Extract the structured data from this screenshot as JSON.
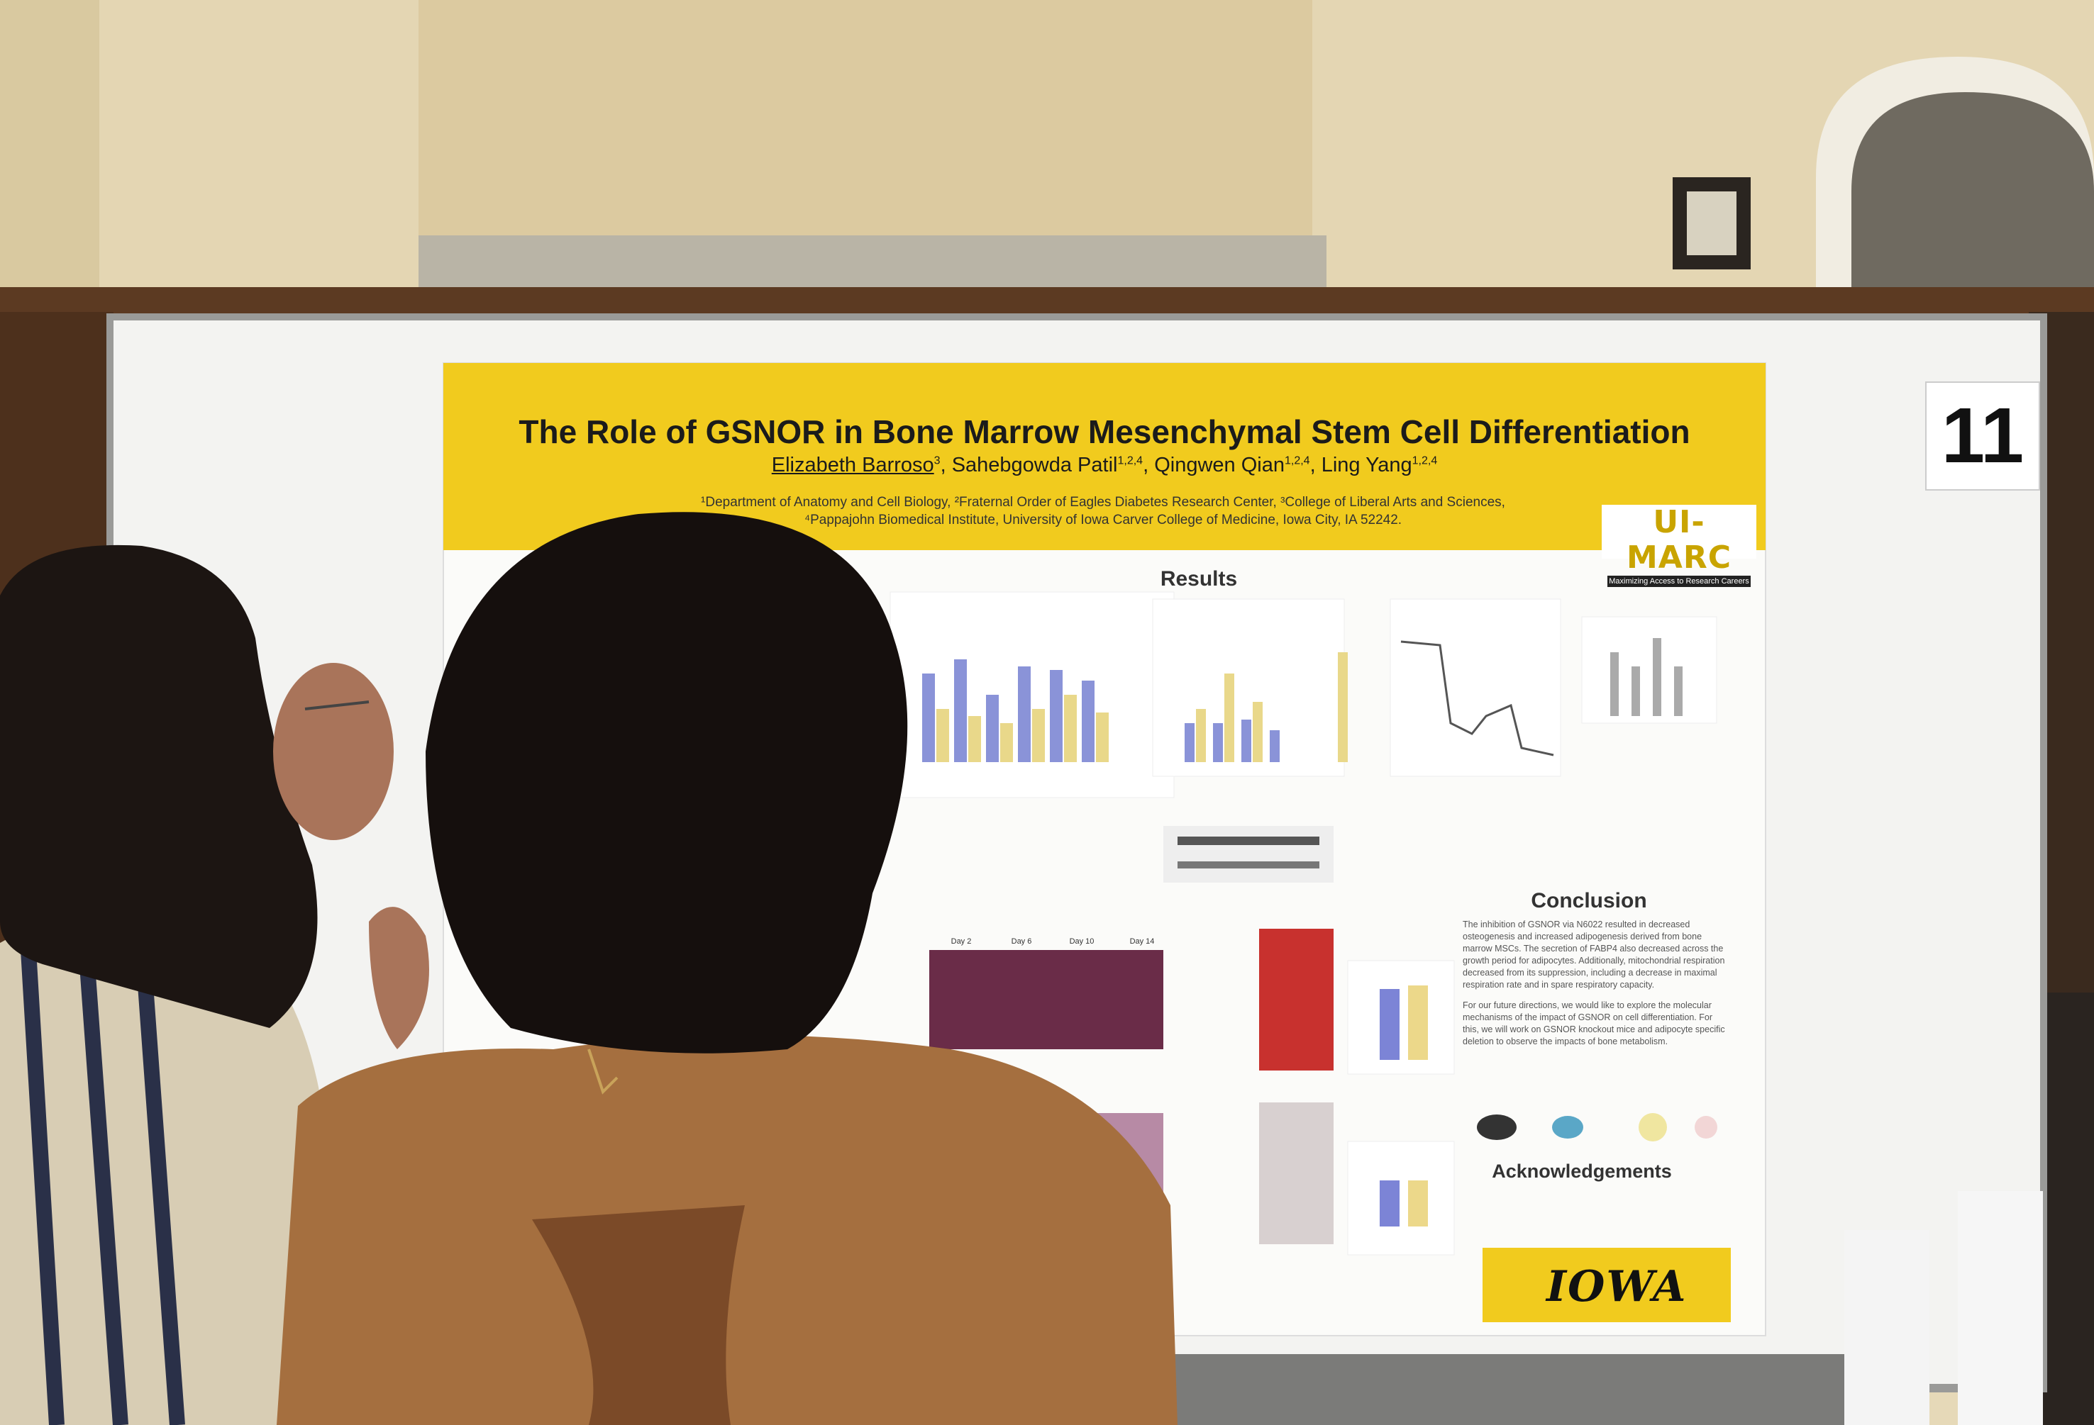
{
  "poster": {
    "title": "The Role of GSNOR in Bone Marrow Mesenchymal Stem Cell Differentiation",
    "authors": [
      {
        "name": "Elizabeth Barroso",
        "sup": "3"
      },
      {
        "name": "Sahebgowda Patil",
        "sup": "1,2,4"
      },
      {
        "name": "Qingwen Qian",
        "sup": "1,2,4"
      },
      {
        "name": "Ling Yang",
        "sup": "1,2,4"
      }
    ],
    "affiliations": [
      "¹Department of Anatomy and Cell Biology, ²Fraternal Order of Eagles Diabetes Research Center, ³College of Liberal Arts and Sciences,",
      "⁴Pappajohn Biomedical Institute, University of Iowa Carver College of Medicine, Iowa City, IA 52242."
    ],
    "logo": {
      "name": "UI-MARC",
      "tagline": "Maximizing Access to Research Careers"
    },
    "results_heading": "Results",
    "day_labels": [
      "Day 2",
      "Day 6",
      "Day 10",
      "Day 14"
    ],
    "conclusion": {
      "heading": "Conclusion",
      "paragraphs": [
        "The inhibition of GSNOR via N6022 resulted in decreased osteogenesis and increased adipogenesis derived from bone marrow MSCs. The secretion of FABP4 also decreased across the growth period for adipocytes. Additionally, mitochondrial respiration decreased from its suppression, including a decrease in maximal respiration rate and in spare respiratory capacity.",
        "For our future directions, we would like to explore the molecular mechanisms of the impact of GSNOR on cell differentiation. For this, we will work on GSNOR knockout mice and adipocyte specific deletion to observe the impacts of bone metabolism."
      ]
    },
    "acknowledgements_heading": "Acknowledgements",
    "university": "IOWA"
  },
  "board_number": "11"
}
